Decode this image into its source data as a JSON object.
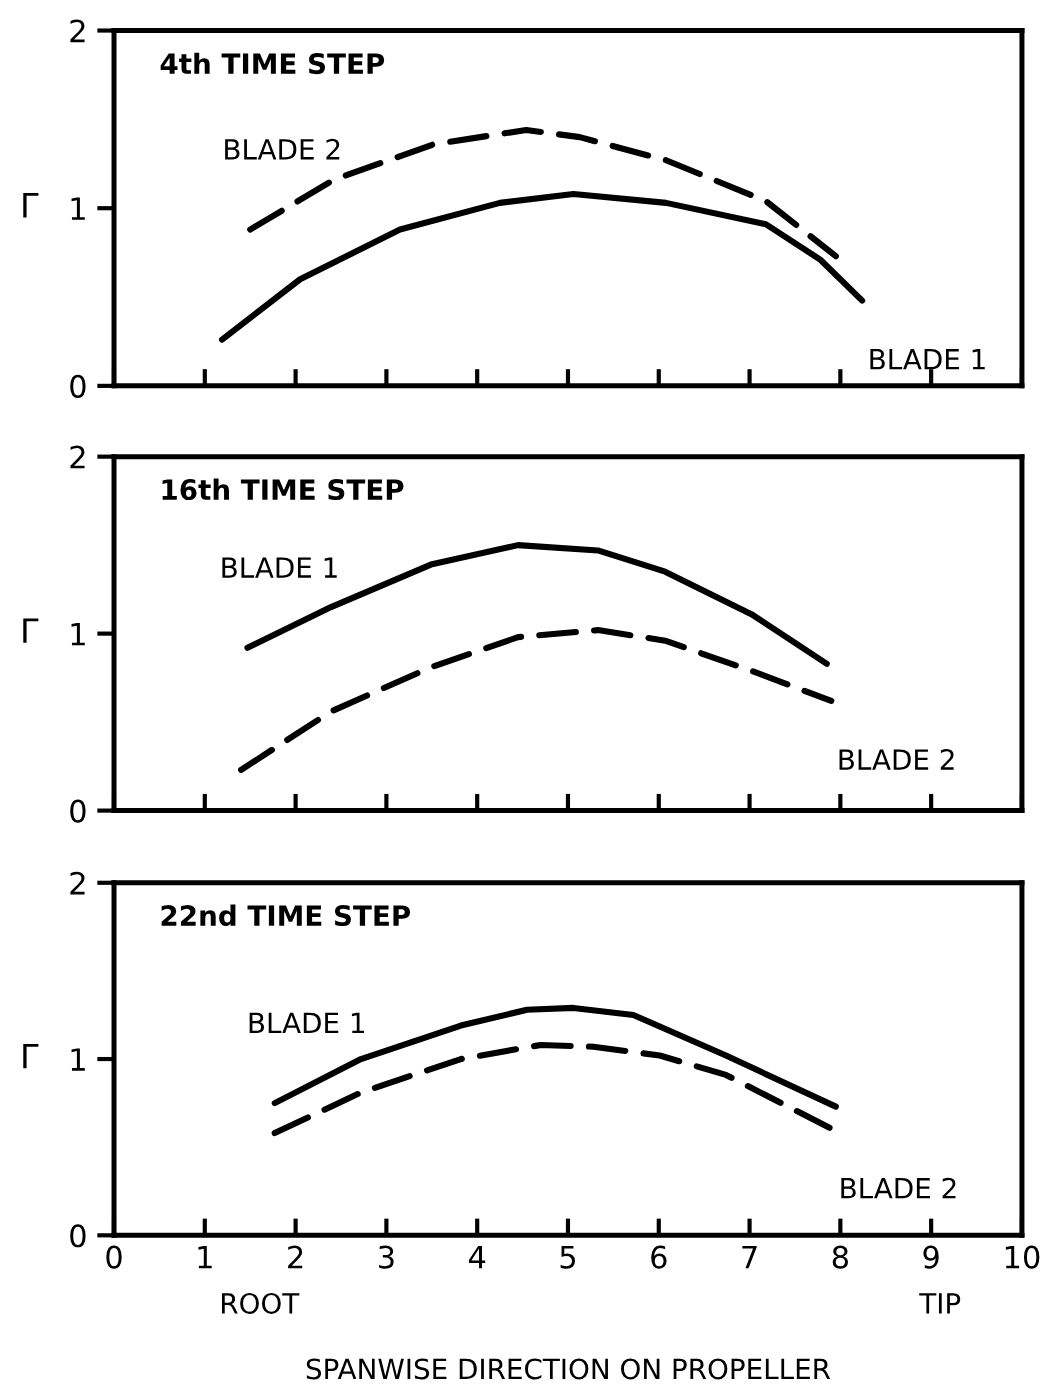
{
  "chart_data": [
    {
      "type": "line",
      "title": "4th TIME STEP",
      "ylabel": "Γ",
      "xlim": [
        0,
        10
      ],
      "ylim": [
        0,
        2
      ],
      "xticks": [
        0,
        1,
        2,
        3,
        4,
        5,
        6,
        7,
        8,
        9,
        10
      ],
      "yticks": [
        0,
        1,
        2
      ],
      "tick_labels": "y",
      "grid": false,
      "legend": false,
      "series": [
        {
          "name": "BLADE 1",
          "color": "#000000",
          "line_style": "solid",
          "x": [
            1.19,
            2.05,
            3.15,
            4.25,
            5.06,
            6.08,
            7.18,
            7.78,
            8.24
          ],
          "values": [
            0.26,
            0.6,
            0.88,
            1.03,
            1.08,
            1.03,
            0.91,
            0.71,
            0.48
          ]
        },
        {
          "name": "BLADE 2",
          "color": "#000000",
          "line_style": "dashed",
          "x": [
            1.5,
            2.42,
            3.52,
            4.54,
            5.13,
            6.08,
            7.18,
            7.95
          ],
          "values": [
            0.88,
            1.16,
            1.36,
            1.44,
            1.4,
            1.27,
            1.04,
            0.73
          ]
        }
      ]
    },
    {
      "type": "line",
      "title": "16th TIME STEP",
      "ylabel": "Γ",
      "xlim": [
        0,
        10
      ],
      "ylim": [
        0,
        2
      ],
      "xticks": [
        0,
        1,
        2,
        3,
        4,
        5,
        6,
        7,
        8,
        9,
        10
      ],
      "yticks": [
        0,
        1,
        2
      ],
      "tick_labels": "y",
      "grid": false,
      "legend": false,
      "series": [
        {
          "name": "BLADE 1",
          "color": "#000000",
          "line_style": "solid",
          "x": [
            1.47,
            2.39,
            3.49,
            4.45,
            5.33,
            6.07,
            7.02,
            7.85
          ],
          "values": [
            0.92,
            1.15,
            1.39,
            1.5,
            1.47,
            1.35,
            1.11,
            0.83
          ]
        },
        {
          "name": "BLADE 2",
          "color": "#000000",
          "line_style": "dashed",
          "x": [
            1.4,
            2.39,
            3.49,
            4.45,
            5.33,
            6.07,
            7.02,
            7.9
          ],
          "values": [
            0.23,
            0.56,
            0.81,
            0.98,
            1.02,
            0.96,
            0.79,
            0.62
          ]
        }
      ]
    },
    {
      "type": "line",
      "title": "22nd TIME STEP",
      "ylabel": "Γ",
      "xlabel": "SPANWISE DIRECTION ON PROPELLER",
      "annotations": [
        "ROOT",
        "TIP"
      ],
      "xlim": [
        0,
        10
      ],
      "ylim": [
        0,
        2
      ],
      "xticks": [
        0,
        1,
        2,
        3,
        4,
        5,
        6,
        7,
        8,
        9,
        10
      ],
      "yticks": [
        0,
        1,
        2
      ],
      "grid": false,
      "legend": false,
      "series": [
        {
          "name": "BLADE 1",
          "color": "#000000",
          "line_style": "solid",
          "x": [
            1.77,
            2.72,
            3.82,
            4.55,
            5.06,
            5.72,
            6.74,
            7.95
          ],
          "values": [
            0.75,
            1.0,
            1.19,
            1.28,
            1.29,
            1.25,
            1.02,
            0.73
          ]
        },
        {
          "name": "BLADE 2",
          "color": "#000000",
          "line_style": "dashed",
          "x": [
            1.77,
            2.72,
            3.82,
            4.7,
            5.28,
            6.01,
            6.74,
            7.92
          ],
          "values": [
            0.58,
            0.81,
            1.0,
            1.08,
            1.07,
            1.02,
            0.91,
            0.6
          ]
        }
      ]
    }
  ]
}
